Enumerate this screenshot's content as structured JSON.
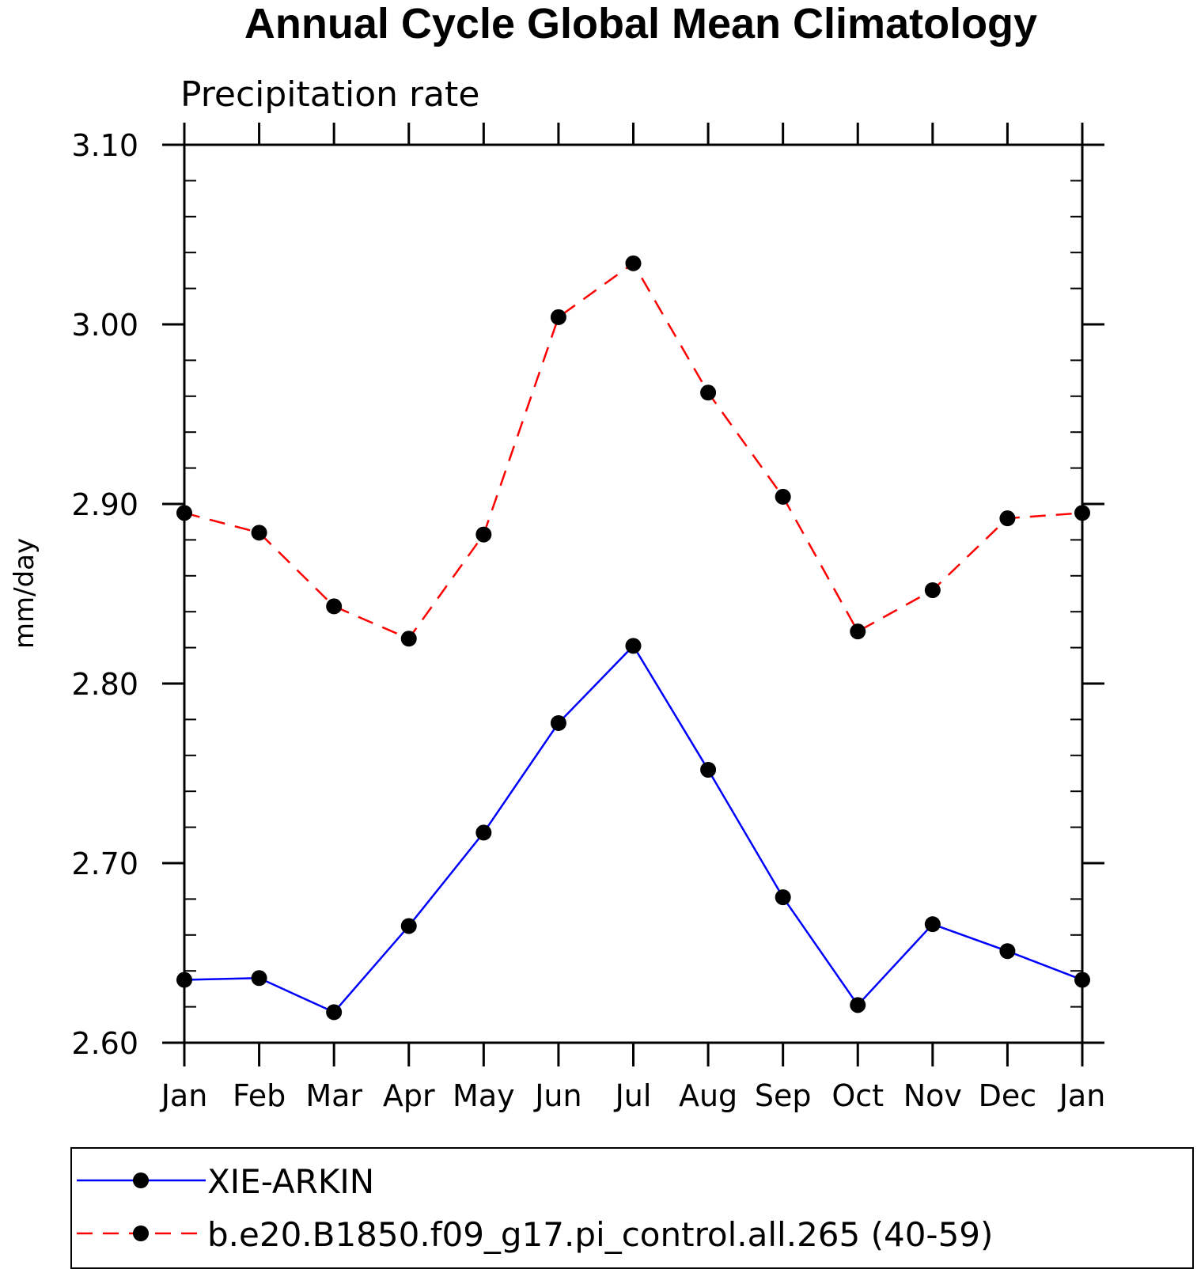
{
  "chart_data": {
    "type": "line",
    "title": "Annual Cycle Global Mean Climatology",
    "subtitle": "Precipitation rate",
    "xlabel": "",
    "ylabel": "mm/day",
    "categories": [
      "Jan",
      "Feb",
      "Mar",
      "Apr",
      "May",
      "Jun",
      "Jul",
      "Aug",
      "Sep",
      "Oct",
      "Nov",
      "Dec",
      "Jan"
    ],
    "ylim": [
      2.6,
      3.1
    ],
    "yticks": [
      "2.60",
      "2.70",
      "2.80",
      "2.90",
      "3.00",
      "3.10"
    ],
    "grid": false,
    "legend_position": "bottom",
    "series": [
      {
        "name": "XIE-ARKIN",
        "color": "#0000ff",
        "dash": "solid",
        "values": [
          2.635,
          2.636,
          2.617,
          2.665,
          2.717,
          2.778,
          2.821,
          2.752,
          2.681,
          2.621,
          2.666,
          2.651,
          2.635
        ]
      },
      {
        "name": "b.e20.B1850.f09_g17.pi_control.all.265 (40-59)",
        "color": "#ff0000",
        "dash": "dashed",
        "values": [
          2.895,
          2.884,
          2.843,
          2.825,
          2.883,
          3.004,
          3.034,
          2.962,
          2.904,
          2.829,
          2.852,
          2.892,
          2.895
        ]
      }
    ]
  }
}
